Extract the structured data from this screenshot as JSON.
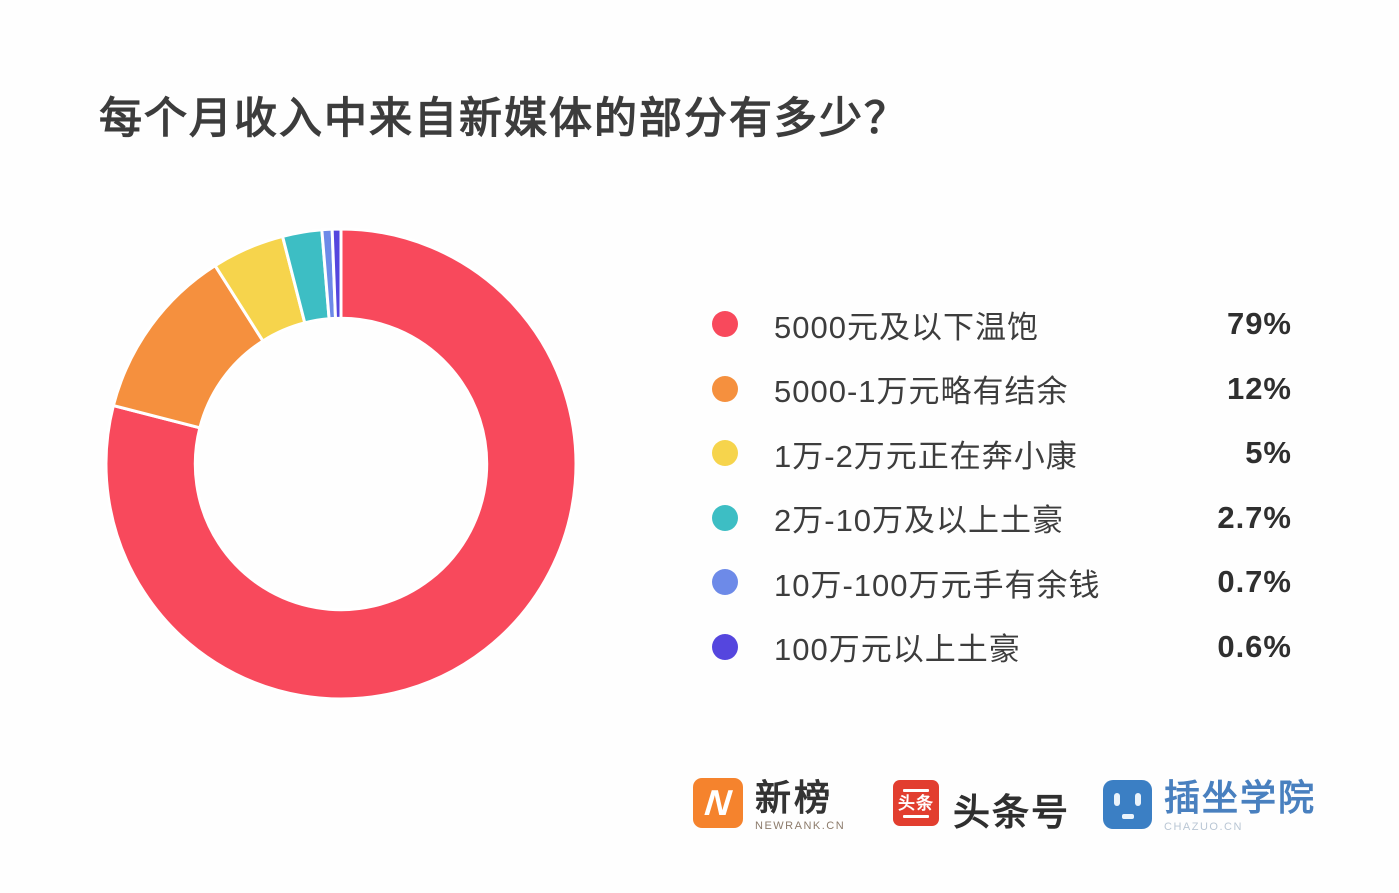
{
  "title": "每个月收入中来自新媒体的部分有多少？",
  "chart_data": {
    "type": "pie",
    "subtype": "donut",
    "title": "每个月收入中来自新媒体的部分有多少？",
    "legend_position": "right",
    "start_angle": "12-oclock clockwise",
    "inner_radius_ratio": 0.62,
    "slice_border_color": "#ffffff",
    "series": [
      {
        "label": "5000元及以下温饱",
        "value": 79,
        "percent_label": "79%",
        "color": "#f8495c"
      },
      {
        "label": "5000-1万元略有结余",
        "value": 12,
        "percent_label": "12%",
        "color": "#f5903e"
      },
      {
        "label": "1万-2万元正在奔小康",
        "value": 5,
        "percent_label": "5%",
        "color": "#f6d44c"
      },
      {
        "label": "2万-10万及以上土豪",
        "value": 2.7,
        "percent_label": "2.7%",
        "color": "#3dbec4"
      },
      {
        "label": "10万-100万元手有余钱",
        "value": 0.7,
        "percent_label": "0.7%",
        "color": "#6d8ae8"
      },
      {
        "label": "100万元以上土豪",
        "value": 0.6,
        "percent_label": "0.6%",
        "color": "#5546de"
      }
    ]
  },
  "footer_logos": {
    "newrank": {
      "name": "新榜",
      "subtext": "NEWRANK.CN",
      "icon_letter": "N",
      "icon_bg": "#f5832d"
    },
    "toutiao": {
      "name": "头条号",
      "icon_text": "头条",
      "icon_bg": "#e23e2f"
    },
    "chazuo": {
      "name": "插坐学院",
      "subtext": "CHAZUO.CN",
      "icon_bg": "#3b7fc4"
    }
  }
}
